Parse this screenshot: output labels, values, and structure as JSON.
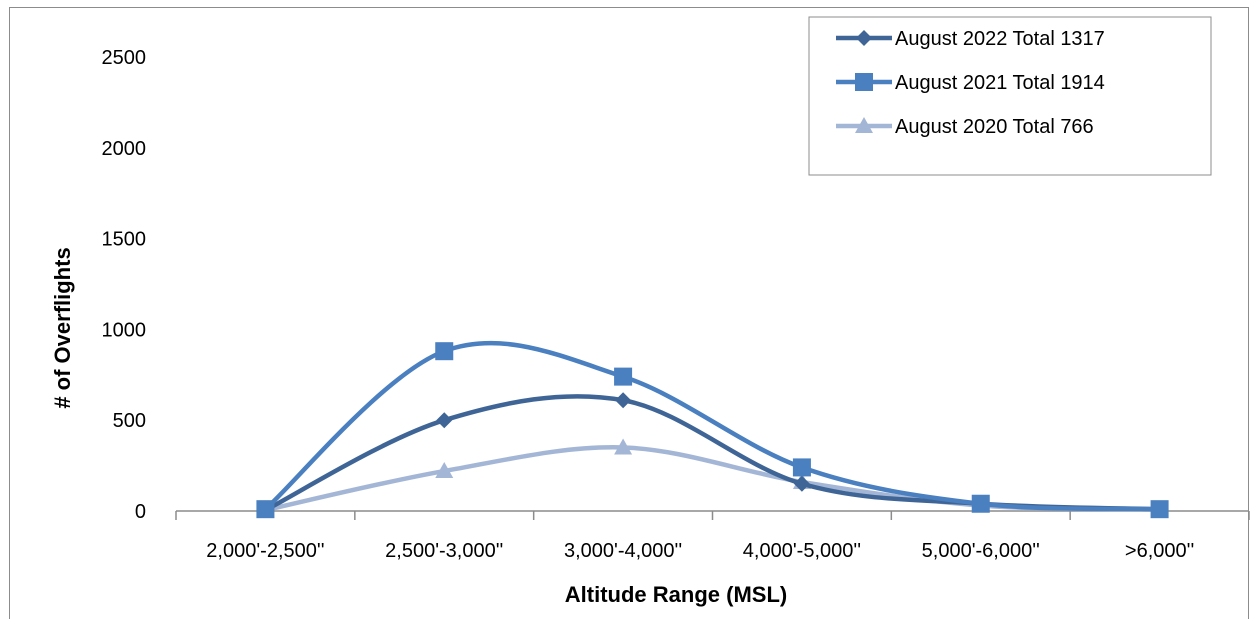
{
  "chart_data": {
    "type": "line",
    "smooth": true,
    "xlabel": "Altitude Range (MSL)",
    "ylabel": "# of Overflights",
    "ylim": [
      0,
      2500
    ],
    "yticks": [
      "0",
      "500",
      "1000",
      "1500",
      "2000",
      "2500"
    ],
    "categories": [
      "2,000'-2,500''",
      "2,500'-3,000''",
      "3,000'-4,000''",
      "4,000'-5,000''",
      "5,000'-6,000''",
      ">6,000''"
    ],
    "grid": false,
    "legend_position": "top-right",
    "series": [
      {
        "name": "August 2022  Total 1317",
        "marker": "diamond",
        "color": "#3f6596",
        "values": [
          5,
          500,
          610,
          150,
          40,
          10
        ]
      },
      {
        "name": "August 2021  Total 1914",
        "marker": "square",
        "color": "#4a7fc0",
        "values": [
          10,
          880,
          740,
          240,
          40,
          10
        ]
      },
      {
        "name": "August 2020  Total 766",
        "marker": "triangle",
        "color": "#a4b6d6",
        "values": [
          5,
          220,
          350,
          160,
          30,
          10
        ]
      }
    ]
  }
}
